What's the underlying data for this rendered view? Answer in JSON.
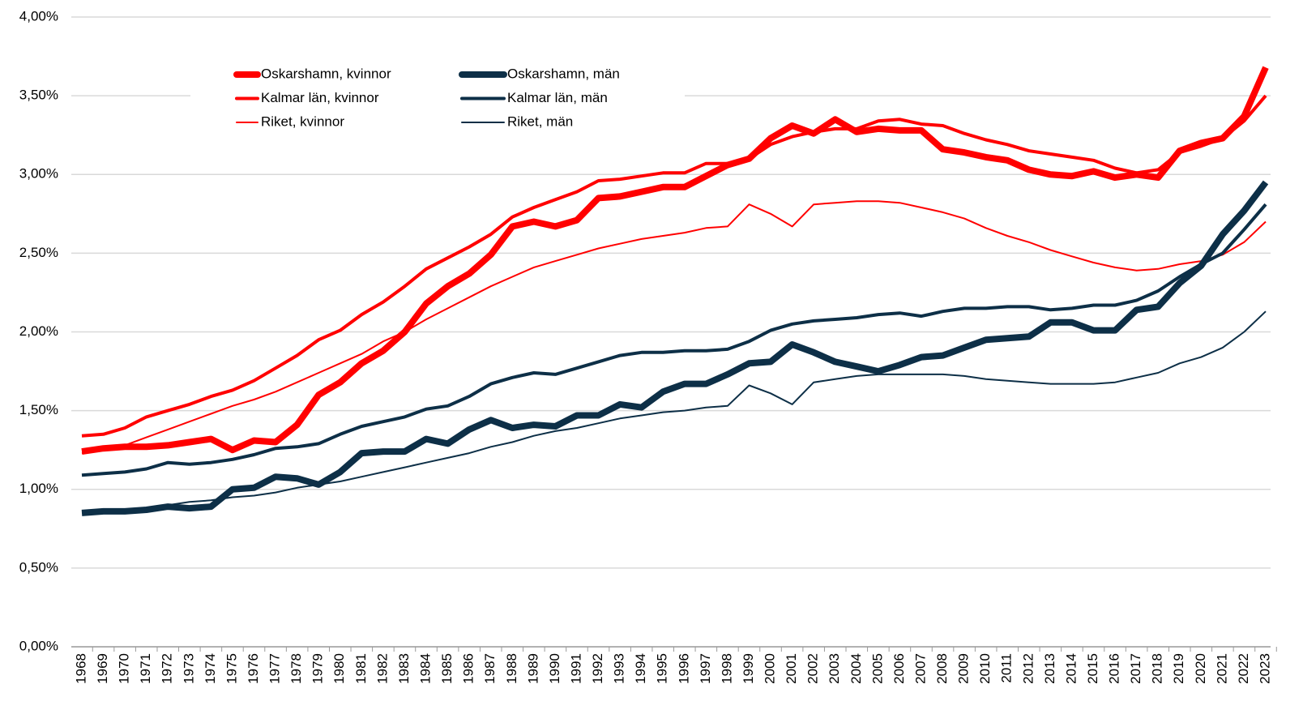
{
  "chart_data": {
    "type": "line",
    "categories": [
      "1968",
      "1969",
      "1970",
      "1971",
      "1972",
      "1973",
      "1974",
      "1975",
      "1976",
      "1977",
      "1978",
      "1979",
      "1980",
      "1981",
      "1982",
      "1983",
      "1984",
      "1985",
      "1986",
      "1987",
      "1988",
      "1989",
      "1990",
      "1991",
      "1992",
      "1993",
      "1994",
      "1995",
      "1996",
      "1997",
      "1998",
      "1999",
      "2000",
      "2001",
      "2002",
      "2003",
      "2004",
      "2005",
      "2006",
      "2007",
      "2008",
      "2009",
      "2010",
      "2011",
      "2012",
      "2013",
      "2014",
      "2015",
      "2016",
      "2017",
      "2018",
      "2019",
      "2020",
      "2021",
      "2022",
      "2023"
    ],
    "series": [
      {
        "name": "Oskarshamn, kvinnor",
        "color": "#ff0000",
        "line_width": 8,
        "values": [
          1.24,
          1.26,
          1.27,
          1.27,
          1.28,
          1.3,
          1.32,
          1.25,
          1.31,
          1.3,
          1.41,
          1.6,
          1.68,
          1.8,
          1.88,
          2.0,
          2.18,
          2.29,
          2.37,
          2.49,
          2.67,
          2.7,
          2.67,
          2.71,
          2.85,
          2.86,
          2.89,
          2.92,
          2.92,
          2.99,
          3.06,
          3.1,
          3.23,
          3.31,
          3.26,
          3.35,
          3.27,
          3.29,
          3.28,
          3.28,
          3.16,
          3.14,
          3.11,
          3.09,
          3.03,
          3.0,
          2.99,
          3.02,
          2.98,
          3.0,
          2.98,
          3.15,
          3.2,
          3.23,
          3.37,
          3.68
        ]
      },
      {
        "name": "Oskarshamn, män",
        "color": "#0d2f47",
        "line_width": 8,
        "values": [
          0.85,
          0.86,
          0.86,
          0.87,
          0.89,
          0.88,
          0.89,
          1.0,
          1.01,
          1.08,
          1.07,
          1.03,
          1.11,
          1.23,
          1.24,
          1.24,
          1.32,
          1.29,
          1.38,
          1.44,
          1.39,
          1.41,
          1.4,
          1.47,
          1.47,
          1.54,
          1.52,
          1.62,
          1.67,
          1.67,
          1.73,
          1.8,
          1.81,
          1.92,
          1.87,
          1.81,
          1.78,
          1.75,
          1.79,
          1.84,
          1.85,
          1.9,
          1.95,
          1.96,
          1.97,
          2.06,
          2.06,
          2.01,
          2.01,
          2.14,
          2.16,
          2.31,
          2.42,
          2.62,
          2.77,
          2.95
        ]
      },
      {
        "name": "Kalmar län, kvinnor",
        "color": "#ff0000",
        "line_width": 4,
        "values": [
          1.34,
          1.35,
          1.39,
          1.46,
          1.5,
          1.54,
          1.59,
          1.63,
          1.69,
          1.77,
          1.85,
          1.95,
          2.01,
          2.11,
          2.19,
          2.29,
          2.4,
          2.47,
          2.54,
          2.62,
          2.73,
          2.79,
          2.84,
          2.89,
          2.96,
          2.97,
          2.99,
          3.01,
          3.01,
          3.07,
          3.07,
          3.1,
          3.19,
          3.24,
          3.27,
          3.29,
          3.29,
          3.34,
          3.35,
          3.32,
          3.31,
          3.26,
          3.22,
          3.19,
          3.15,
          3.13,
          3.11,
          3.09,
          3.04,
          3.01,
          3.03,
          3.14,
          3.18,
          3.23,
          3.34,
          3.5
        ]
      },
      {
        "name": "Kalmar län, män",
        "color": "#0d2f47",
        "line_width": 4,
        "values": [
          1.09,
          1.1,
          1.11,
          1.13,
          1.17,
          1.16,
          1.17,
          1.19,
          1.22,
          1.26,
          1.27,
          1.29,
          1.35,
          1.4,
          1.43,
          1.46,
          1.51,
          1.53,
          1.59,
          1.67,
          1.71,
          1.74,
          1.73,
          1.77,
          1.81,
          1.85,
          1.87,
          1.87,
          1.88,
          1.88,
          1.89,
          1.94,
          2.01,
          2.05,
          2.07,
          2.08,
          2.09,
          2.11,
          2.12,
          2.1,
          2.13,
          2.15,
          2.15,
          2.16,
          2.16,
          2.14,
          2.15,
          2.17,
          2.17,
          2.2,
          2.26,
          2.35,
          2.43,
          2.5,
          2.65,
          2.81
        ]
      },
      {
        "name": "Riket, kvinnor",
        "color": "#ff0000",
        "line_width": 2,
        "values": [
          1.23,
          1.25,
          1.28,
          1.33,
          1.38,
          1.43,
          1.48,
          1.53,
          1.57,
          1.62,
          1.68,
          1.74,
          1.8,
          1.86,
          1.94,
          2.0,
          2.08,
          2.15,
          2.22,
          2.29,
          2.35,
          2.41,
          2.45,
          2.49,
          2.53,
          2.56,
          2.59,
          2.61,
          2.63,
          2.66,
          2.67,
          2.81,
          2.75,
          2.67,
          2.81,
          2.82,
          2.83,
          2.83,
          2.82,
          2.79,
          2.76,
          2.72,
          2.66,
          2.61,
          2.57,
          2.52,
          2.48,
          2.44,
          2.41,
          2.39,
          2.4,
          2.43,
          2.45,
          2.49,
          2.57,
          2.7
        ]
      },
      {
        "name": "Riket, män",
        "color": "#0d2f47",
        "line_width": 2,
        "values": [
          0.85,
          0.86,
          0.86,
          0.88,
          0.9,
          0.92,
          0.93,
          0.95,
          0.96,
          0.98,
          1.01,
          1.03,
          1.05,
          1.08,
          1.11,
          1.14,
          1.17,
          1.2,
          1.23,
          1.27,
          1.3,
          1.34,
          1.37,
          1.39,
          1.42,
          1.45,
          1.47,
          1.49,
          1.5,
          1.52,
          1.53,
          1.66,
          1.61,
          1.54,
          1.68,
          1.7,
          1.72,
          1.73,
          1.73,
          1.73,
          1.73,
          1.72,
          1.7,
          1.69,
          1.68,
          1.67,
          1.67,
          1.67,
          1.68,
          1.71,
          1.74,
          1.8,
          1.84,
          1.9,
          2.0,
          2.13
        ]
      }
    ],
    "ylim": [
      0,
      4
    ],
    "yticks": [
      {
        "value": 0,
        "label": "0,00%"
      },
      {
        "value": 0.5,
        "label": "0,50%"
      },
      {
        "value": 1,
        "label": "1,00%"
      },
      {
        "value": 1.5,
        "label": "1,50%"
      },
      {
        "value": 2,
        "label": "2,00%"
      },
      {
        "value": 2.5,
        "label": "2,50%"
      },
      {
        "value": 3,
        "label": "3,00%"
      },
      {
        "value": 3.5,
        "label": "3,50%"
      },
      {
        "value": 4,
        "label": "4,00%"
      }
    ],
    "grid": true,
    "legend": "upper left"
  }
}
